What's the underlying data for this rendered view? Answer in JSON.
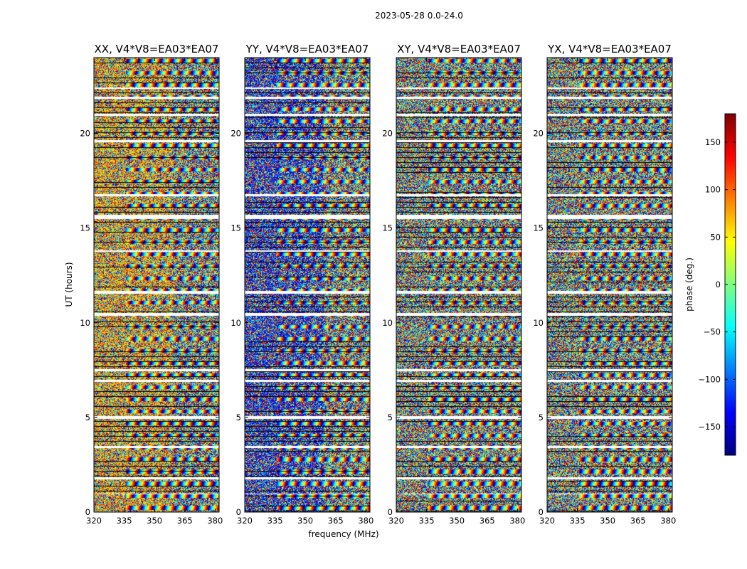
{
  "figure": {
    "suptitle": "2023-05-28 0.0-24.0"
  },
  "chart_data": {
    "type": "heatmap",
    "xlabel": "frequency (MHz)",
    "ylabel": "UT (hours)",
    "xlim": [
      320,
      382
    ],
    "ylim": [
      0,
      24
    ],
    "x_ticks": [
      320,
      335,
      350,
      365,
      380
    ],
    "y_ticks": [
      0,
      5,
      10,
      15,
      20
    ],
    "colorbar": {
      "label": "phase (deg.)",
      "range": [
        -180,
        180
      ],
      "ticks": [
        -150,
        -100,
        -50,
        0,
        50,
        100,
        150
      ],
      "colormap": "jet",
      "colors": [
        "#00007f",
        "#0000ff",
        "#007fff",
        "#00ffff",
        "#7fff7f",
        "#ffff00",
        "#ff7f00",
        "#ff0000",
        "#7f0000"
      ]
    },
    "flagged_bands_hours": [
      [
        0.95,
        1.0
      ],
      [
        1.75,
        1.85
      ],
      [
        3.4,
        3.5
      ],
      [
        4.95,
        5.1
      ],
      [
        6.9,
        7.0
      ],
      [
        7.45,
        7.55
      ],
      [
        10.4,
        10.55
      ],
      [
        11.55,
        11.7
      ],
      [
        13.75,
        13.85
      ],
      [
        15.5,
        15.7
      ],
      [
        16.7,
        16.8
      ],
      [
        19.55,
        19.65
      ],
      [
        20.95,
        21.05
      ],
      [
        21.85,
        21.95
      ],
      [
        22.35,
        22.45
      ]
    ],
    "panels": [
      {
        "title": "XX, V4*V8=EA03*EA07",
        "corr": "XX"
      },
      {
        "title": "YY, V4*V8=EA03*EA07",
        "corr": "YY"
      },
      {
        "title": "XY, V4*V8=EA03*EA07",
        "corr": "XY"
      },
      {
        "title": "YX, V4*V8=EA03*EA07",
        "corr": "YX"
      }
    ]
  }
}
